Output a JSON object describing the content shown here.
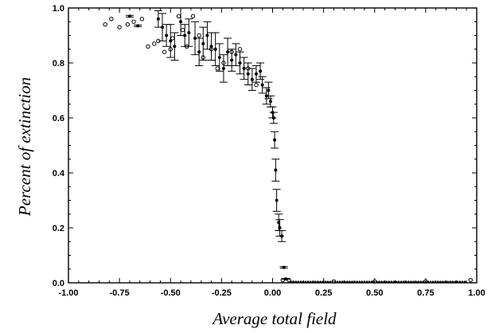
{
  "chart_data": {
    "type": "scatter",
    "title": "",
    "xlabel": "Average total field",
    "ylabel": "Percent of extinction",
    "xlim": [
      -1.0,
      1.0
    ],
    "ylim": [
      0.0,
      1.0
    ],
    "x_ticks": [
      "-1.00",
      "-0.75",
      "-0.50",
      "-0.25",
      "0.00",
      "0.25",
      "0.50",
      "0.75",
      "1.00"
    ],
    "y_ticks": [
      "0.0",
      "0.2",
      "0.4",
      "0.6",
      "0.8",
      "1.0"
    ],
    "x_tick_values": [
      -1.0,
      -0.75,
      -0.5,
      -0.25,
      0.0,
      0.25,
      0.5,
      0.75,
      1.0
    ],
    "y_tick_values": [
      0.0,
      0.2,
      0.4,
      0.6,
      0.8,
      1.0
    ],
    "grid": false,
    "legend": "none",
    "series": [
      {
        "marker": "open-circle",
        "points": [
          {
            "x": -0.82,
            "y": 0.94
          },
          {
            "x": -0.79,
            "y": 0.96
          },
          {
            "x": -0.75,
            "y": 0.93
          },
          {
            "x": -0.71,
            "y": 0.94
          },
          {
            "x": -0.68,
            "y": 0.95
          },
          {
            "x": -0.64,
            "y": 0.96
          },
          {
            "x": -0.61,
            "y": 0.86
          },
          {
            "x": -0.58,
            "y": 0.87
          },
          {
            "x": -0.56,
            "y": 0.88
          },
          {
            "x": -0.53,
            "y": 0.84
          },
          {
            "x": -0.5,
            "y": 0.85
          },
          {
            "x": -0.49,
            "y": 0.89
          },
          {
            "x": -0.46,
            "y": 0.97
          },
          {
            "x": -0.44,
            "y": 0.92
          },
          {
            "x": -0.42,
            "y": 0.86
          },
          {
            "x": -0.39,
            "y": 0.97
          },
          {
            "x": -0.36,
            "y": 0.9
          },
          {
            "x": -0.34,
            "y": 0.82
          },
          {
            "x": -0.3,
            "y": 0.85
          },
          {
            "x": -0.27,
            "y": 0.78
          },
          {
            "x": -0.24,
            "y": 0.8
          },
          {
            "x": -0.2,
            "y": 0.84
          },
          {
            "x": -0.16,
            "y": 0.85
          },
          {
            "x": -0.12,
            "y": 0.78
          },
          {
            "x": -0.08,
            "y": 0.72
          },
          {
            "x": 0.05,
            "y": 0.01
          },
          {
            "x": 0.08,
            "y": 0.01
          },
          {
            "x": 0.3,
            "y": 0.005
          },
          {
            "x": 0.5,
            "y": 0.005
          },
          {
            "x": 0.75,
            "y": 0.005
          },
          {
            "x": 0.97,
            "y": 0.01
          }
        ]
      },
      {
        "marker": "filled-circle-errorbar",
        "points": [
          {
            "x": -0.7,
            "y": 0.97,
            "err": 0.003
          },
          {
            "x": -0.66,
            "y": 0.935,
            "err": 0.003
          },
          {
            "x": -0.56,
            "y": 0.96,
            "err": 0.03
          },
          {
            "x": -0.54,
            "y": 0.93,
            "err": 0.05
          },
          {
            "x": -0.52,
            "y": 0.9,
            "err": 0.04
          },
          {
            "x": -0.5,
            "y": 0.88,
            "err": 0.06
          },
          {
            "x": -0.48,
            "y": 0.86,
            "err": 0.05
          },
          {
            "x": -0.45,
            "y": 0.95,
            "err": 0.05
          },
          {
            "x": -0.43,
            "y": 0.9,
            "err": 0.04
          },
          {
            "x": -0.41,
            "y": 0.91,
            "err": 0.05
          },
          {
            "x": -0.38,
            "y": 0.89,
            "err": 0.06
          },
          {
            "x": -0.36,
            "y": 0.84,
            "err": 0.05
          },
          {
            "x": -0.34,
            "y": 0.87,
            "err": 0.06
          },
          {
            "x": -0.32,
            "y": 0.9,
            "err": 0.05
          },
          {
            "x": -0.3,
            "y": 0.86,
            "err": 0.05
          },
          {
            "x": -0.28,
            "y": 0.85,
            "err": 0.06
          },
          {
            "x": -0.26,
            "y": 0.82,
            "err": 0.05
          },
          {
            "x": -0.24,
            "y": 0.78,
            "err": 0.05
          },
          {
            "x": -0.22,
            "y": 0.84,
            "err": 0.05
          },
          {
            "x": -0.2,
            "y": 0.81,
            "err": 0.04
          },
          {
            "x": -0.18,
            "y": 0.83,
            "err": 0.04
          },
          {
            "x": -0.16,
            "y": 0.8,
            "err": 0.04
          },
          {
            "x": -0.14,
            "y": 0.78,
            "err": 0.04
          },
          {
            "x": -0.12,
            "y": 0.76,
            "err": 0.04
          },
          {
            "x": -0.1,
            "y": 0.74,
            "err": 0.04
          },
          {
            "x": -0.08,
            "y": 0.76,
            "err": 0.03
          },
          {
            "x": -0.06,
            "y": 0.77,
            "err": 0.03
          },
          {
            "x": -0.05,
            "y": 0.72,
            "err": 0.03
          },
          {
            "x": -0.03,
            "y": 0.68,
            "err": 0.03
          },
          {
            "x": -0.02,
            "y": 0.7,
            "err": 0.03
          },
          {
            "x": -0.01,
            "y": 0.66,
            "err": 0.02
          },
          {
            "x": 0.0,
            "y": 0.62,
            "err": 0.02
          },
          {
            "x": 0.005,
            "y": 0.6,
            "err": 0.02
          },
          {
            "x": 0.01,
            "y": 0.52,
            "err": 0.03
          },
          {
            "x": 0.015,
            "y": 0.41,
            "err": 0.04
          },
          {
            "x": 0.02,
            "y": 0.3,
            "err": 0.04
          },
          {
            "x": 0.03,
            "y": 0.22,
            "err": 0.03
          },
          {
            "x": 0.035,
            "y": 0.2,
            "err": 0.03
          },
          {
            "x": 0.045,
            "y": 0.17,
            "err": 0.02
          },
          {
            "x": 0.055,
            "y": 0.056,
            "err": 0.003
          },
          {
            "x": 0.065,
            "y": 0.014,
            "err": 0.002
          }
        ]
      }
    ]
  }
}
